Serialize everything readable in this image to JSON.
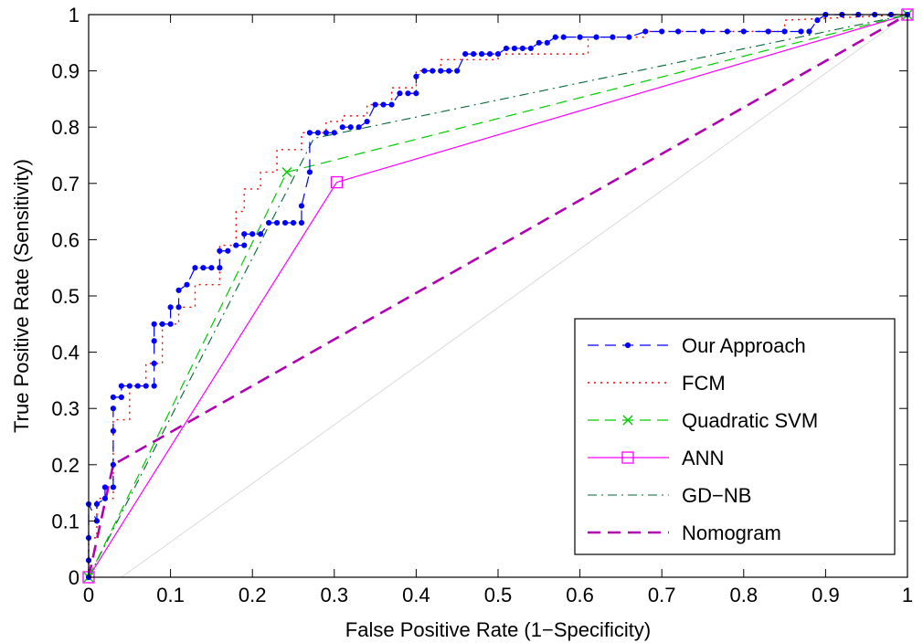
{
  "chart_data": {
    "type": "line",
    "xlabel": "False Positive Rate (1−Specificity)",
    "ylabel": "True Positive Rate (Sensitivity)",
    "xlim": [
      0,
      1
    ],
    "ylim": [
      0,
      1
    ],
    "x_ticks": [
      "0",
      "0.1",
      "0.2",
      "0.3",
      "0.4",
      "0.5",
      "0.6",
      "0.7",
      "0.8",
      "0.9",
      "1"
    ],
    "y_ticks": [
      "0",
      "0.1",
      "0.2",
      "0.3",
      "0.4",
      "0.5",
      "0.6",
      "0.7",
      "0.8",
      "0.9",
      "1"
    ],
    "grid": false,
    "legend_position": "bottom-right",
    "reference_line": {
      "x": [
        0.04,
        1
      ],
      "y": [
        0,
        1
      ],
      "color": "#d9d9d9"
    },
    "series": [
      {
        "name": "Our Approach",
        "color": "#0000ff",
        "line_style": "dashed",
        "marker": "dot",
        "x": [
          0,
          0,
          0,
          0,
          0.01,
          0.01,
          0.02,
          0.02,
          0.03,
          0.03,
          0.03,
          0.03,
          0.03,
          0.04,
          0.04,
          0.05,
          0.06,
          0.07,
          0.08,
          0.08,
          0.08,
          0.08,
          0.09,
          0.1,
          0.1,
          0.11,
          0.11,
          0.12,
          0.13,
          0.14,
          0.15,
          0.16,
          0.16,
          0.17,
          0.18,
          0.19,
          0.19,
          0.2,
          0.21,
          0.22,
          0.23,
          0.24,
          0.25,
          0.26,
          0.26,
          0.27,
          0.27,
          0.28,
          0.29,
          0.3,
          0.31,
          0.32,
          0.33,
          0.34,
          0.35,
          0.36,
          0.37,
          0.38,
          0.39,
          0.4,
          0.4,
          0.41,
          0.42,
          0.43,
          0.44,
          0.45,
          0.46,
          0.47,
          0.48,
          0.49,
          0.5,
          0.51,
          0.52,
          0.53,
          0.54,
          0.55,
          0.56,
          0.57,
          0.58,
          0.6,
          0.62,
          0.64,
          0.66,
          0.68,
          0.7,
          0.72,
          0.75,
          0.78,
          0.8,
          0.83,
          0.85,
          0.87,
          0.88,
          0.89,
          0.9,
          0.92,
          0.94,
          0.96,
          0.98,
          1
        ],
        "y": [
          0,
          0.03,
          0.07,
          0.13,
          0.1,
          0.13,
          0.14,
          0.16,
          0.16,
          0.2,
          0.26,
          0.3,
          0.32,
          0.32,
          0.34,
          0.34,
          0.34,
          0.34,
          0.34,
          0.38,
          0.42,
          0.45,
          0.45,
          0.45,
          0.48,
          0.48,
          0.51,
          0.52,
          0.55,
          0.55,
          0.55,
          0.55,
          0.58,
          0.58,
          0.59,
          0.59,
          0.61,
          0.61,
          0.61,
          0.63,
          0.63,
          0.63,
          0.63,
          0.63,
          0.66,
          0.72,
          0.79,
          0.79,
          0.79,
          0.79,
          0.8,
          0.8,
          0.8,
          0.81,
          0.84,
          0.84,
          0.84,
          0.86,
          0.86,
          0.86,
          0.89,
          0.9,
          0.9,
          0.9,
          0.9,
          0.9,
          0.93,
          0.93,
          0.93,
          0.93,
          0.93,
          0.94,
          0.94,
          0.94,
          0.94,
          0.95,
          0.95,
          0.96,
          0.96,
          0.96,
          0.96,
          0.96,
          0.96,
          0.97,
          0.97,
          0.97,
          0.97,
          0.97,
          0.97,
          0.97,
          0.97,
          0.97,
          0.97,
          0.99,
          1,
          1,
          1,
          1,
          1,
          1
        ]
      },
      {
        "name": "FCM",
        "color": "#ff0000",
        "line_style": "dotted",
        "marker": "none",
        "x": [
          0,
          0,
          0.01,
          0.01,
          0.03,
          0.03,
          0.05,
          0.05,
          0.07,
          0.07,
          0.09,
          0.09,
          0.11,
          0.11,
          0.13,
          0.13,
          0.16,
          0.16,
          0.18,
          0.18,
          0.19,
          0.19,
          0.21,
          0.21,
          0.23,
          0.23,
          0.26,
          0.26,
          0.29,
          0.29,
          0.31,
          0.31,
          0.34,
          0.34,
          0.37,
          0.37,
          0.4,
          0.4,
          0.43,
          0.43,
          0.5,
          0.5,
          0.55,
          0.55,
          0.61,
          0.61,
          0.68,
          0.68,
          0.75,
          0.75,
          0.85,
          0.85,
          1
        ],
        "y": [
          0,
          0.07,
          0.07,
          0.14,
          0.14,
          0.28,
          0.28,
          0.34,
          0.34,
          0.38,
          0.38,
          0.45,
          0.45,
          0.48,
          0.48,
          0.52,
          0.52,
          0.59,
          0.59,
          0.65,
          0.65,
          0.69,
          0.69,
          0.72,
          0.72,
          0.76,
          0.76,
          0.79,
          0.79,
          0.81,
          0.81,
          0.82,
          0.82,
          0.84,
          0.84,
          0.87,
          0.87,
          0.9,
          0.9,
          0.92,
          0.92,
          0.93,
          0.93,
          0.93,
          0.93,
          0.96,
          0.96,
          0.97,
          0.97,
          0.97,
          0.97,
          0.99,
          1
        ]
      },
      {
        "name": "Quadratic SVM",
        "color": "#00cc00",
        "line_style": "dashed",
        "marker": "x",
        "marker_points": [
          0,
          1,
          2
        ],
        "x": [
          0,
          0.242,
          1
        ],
        "y": [
          0,
          0.72,
          1
        ]
      },
      {
        "name": "ANN",
        "color": "#ff00ff",
        "line_style": "solid",
        "marker": "square",
        "marker_points": [
          0,
          1,
          2
        ],
        "x": [
          0,
          0.303,
          1
        ],
        "y": [
          0,
          0.702,
          1
        ]
      },
      {
        "name": "GD−NB",
        "color": "#006633",
        "line_style": "dashdot",
        "marker": "none",
        "x": [
          0,
          0.275,
          1
        ],
        "y": [
          0,
          0.78,
          1
        ]
      },
      {
        "name": "Nomogram",
        "color": "#b000b0",
        "line_style": "dashed-thick",
        "marker": "none",
        "x": [
          0,
          0.03,
          1
        ],
        "y": [
          0,
          0.2,
          1
        ]
      }
    ]
  }
}
